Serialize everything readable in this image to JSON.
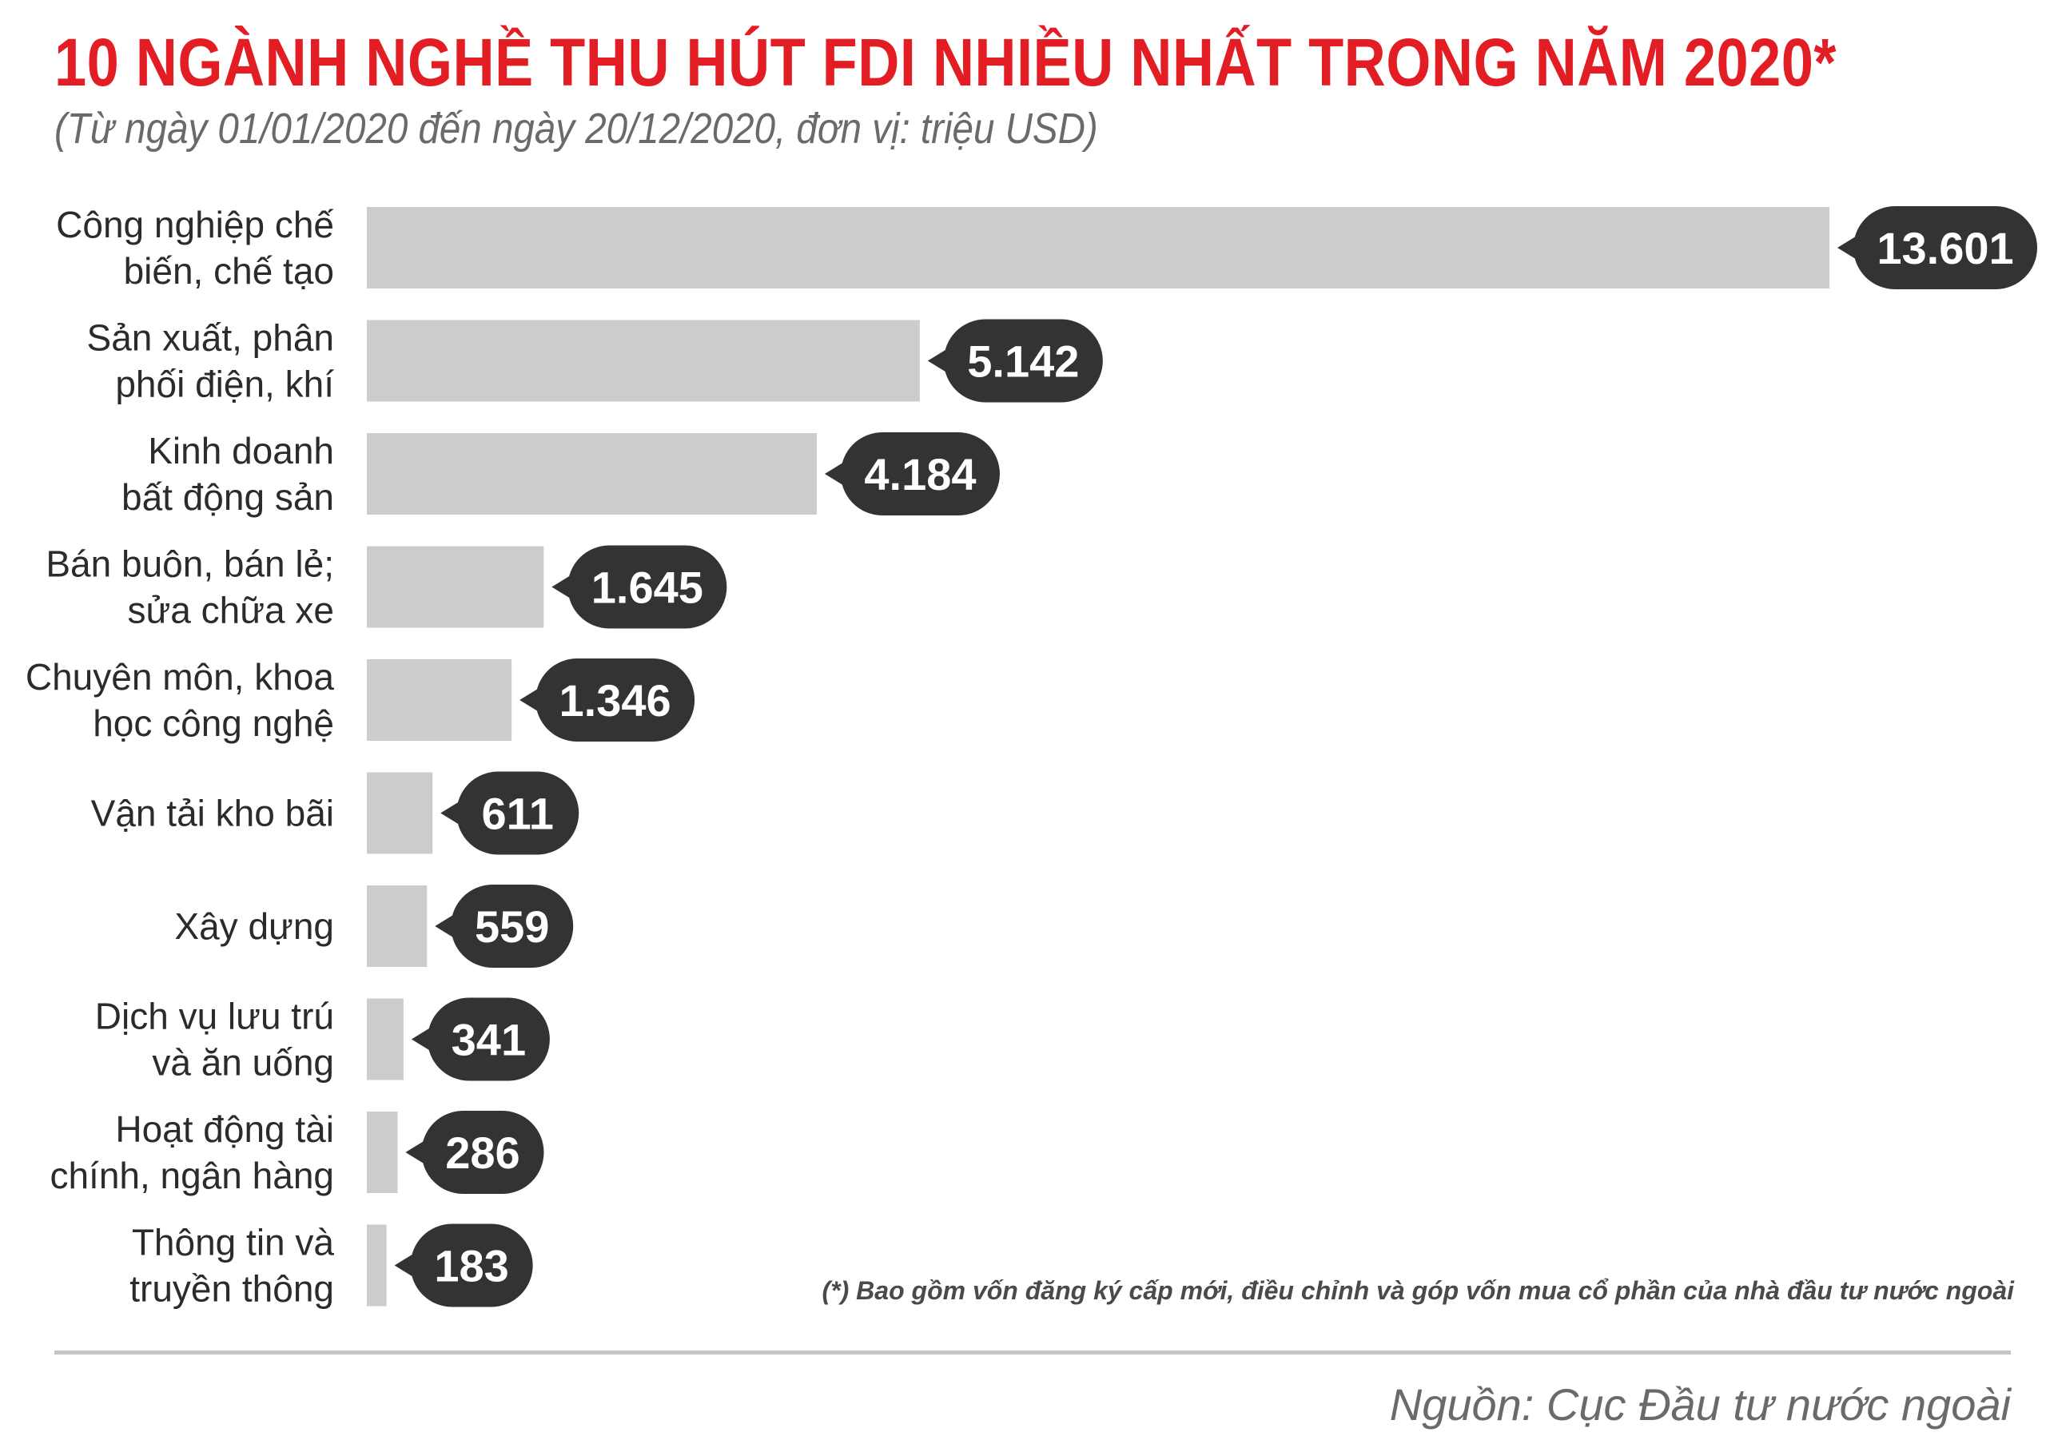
{
  "chart_data": {
    "type": "bar",
    "orientation": "horizontal",
    "title": "10 NGÀNH NGHỀ THU HÚT FDI NHIỀU NHẤT TRONG NĂM 2020*",
    "subtitle": "(Từ ngày 01/01/2020 đến ngày 20/12/2020, đơn vị: triệu USD)",
    "categories": [
      [
        "Công nghiệp chế",
        "biến, chế tạo"
      ],
      [
        "Sản xuất, phân",
        "phối điện, khí"
      ],
      [
        "Kinh doanh",
        "bất động sản"
      ],
      [
        "Bán buôn, bán lẻ;",
        "sửa chữa xe"
      ],
      [
        "Chuyên môn, khoa",
        "học công nghệ"
      ],
      [
        "Vận tải kho bãi"
      ],
      [
        "Xây dựng"
      ],
      [
        "Dịch vụ lưu trú",
        "và ăn uống"
      ],
      [
        "Hoạt động tài",
        "chính, ngân hàng"
      ],
      [
        "Thông tin và",
        "truyền thông"
      ]
    ],
    "values": [
      13601,
      5142,
      4184,
      1645,
      1346,
      611,
      559,
      341,
      286,
      183
    ],
    "value_labels": [
      "13.601",
      "5.142",
      "4.184",
      "1.645",
      "1.346",
      "611",
      "559",
      "341",
      "286",
      "183"
    ],
    "unit": "triệu USD",
    "footnote": "(*) Bao gồm vốn đăng ký cấp mới, điều chỉnh và góp vốn mua cổ phần của nhà đầu tư nước ngoài",
    "source": "Nguồn: Cục Đầu tư nước ngoài",
    "legend": "none",
    "grid": false
  },
  "colors": {
    "title": "#e31d24",
    "bar": "#cccccc",
    "value_bubble": "#333333",
    "value_text": "#ffffff",
    "label_text": "#2b2b2b",
    "muted_text": "#6a6a6a",
    "rule": "#c6c6c6"
  }
}
